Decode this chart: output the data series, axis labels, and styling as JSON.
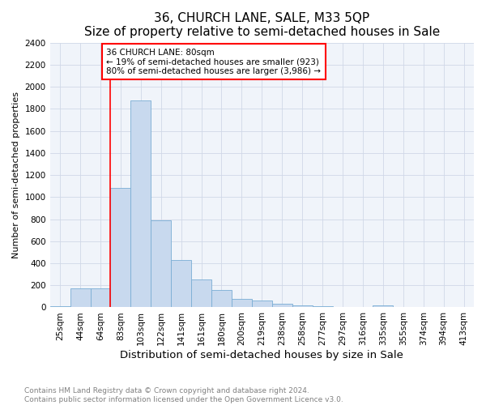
{
  "title": "36, CHURCH LANE, SALE, M33 5QP",
  "subtitle": "Size of property relative to semi-detached houses in Sale",
  "xlabel": "Distribution of semi-detached houses by size in Sale",
  "ylabel": "Number of semi-detached properties",
  "categories": [
    "25sqm",
    "44sqm",
    "64sqm",
    "83sqm",
    "103sqm",
    "122sqm",
    "141sqm",
    "161sqm",
    "180sqm",
    "200sqm",
    "219sqm",
    "238sqm",
    "258sqm",
    "277sqm",
    "297sqm",
    "316sqm",
    "335sqm",
    "355sqm",
    "374sqm",
    "394sqm",
    "413sqm"
  ],
  "values": [
    10,
    170,
    170,
    1080,
    1880,
    790,
    430,
    255,
    155,
    75,
    65,
    35,
    20,
    10,
    5,
    3,
    15,
    2,
    1,
    1,
    1
  ],
  "bar_color": "#c8d9ee",
  "bar_edgecolor": "#7aadd4",
  "annotation_text": "36 CHURCH LANE: 80sqm\n← 19% of semi-detached houses are smaller (923)\n80% of semi-detached houses are larger (3,986) →",
  "annotation_box_color": "white",
  "annotation_box_edgecolor": "red",
  "red_line_color": "red",
  "red_line_index": 2.5,
  "ylim": [
    0,
    2400
  ],
  "yticks": [
    0,
    200,
    400,
    600,
    800,
    1000,
    1200,
    1400,
    1600,
    1800,
    2000,
    2200,
    2400
  ],
  "footer1": "Contains HM Land Registry data © Crown copyright and database right 2024.",
  "footer2": "Contains public sector information licensed under the Open Government Licence v3.0.",
  "title_fontsize": 11,
  "subtitle_fontsize": 9.5,
  "xlabel_fontsize": 9.5,
  "ylabel_fontsize": 8,
  "tick_fontsize": 7.5,
  "annotation_fontsize": 7.5,
  "footer_fontsize": 6.5
}
